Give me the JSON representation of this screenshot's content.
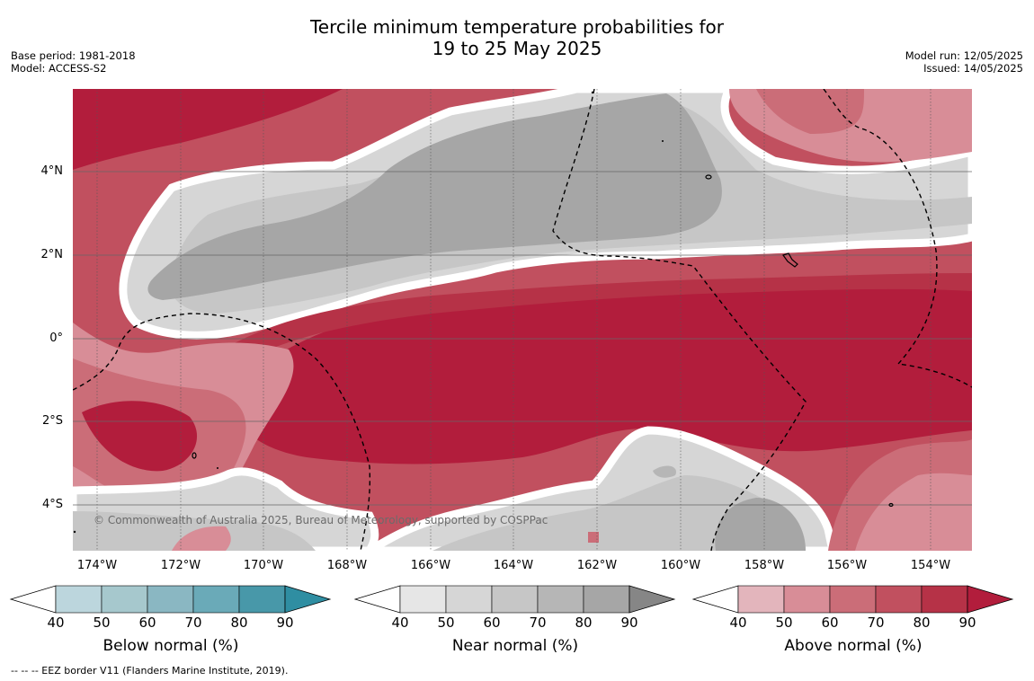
{
  "header": {
    "title_line1": "Tercile minimum temperature probabilities for",
    "title_line2": "19 to 25 May 2025",
    "base_period": "Base period: 1981-2018",
    "model": "Model: ACCESS-S2",
    "model_run": "Model run: 12/05/2025",
    "issued": "Issued: 14/05/2025"
  },
  "map": {
    "lat_labels": [
      "4°N",
      "2°N",
      "0°",
      "2°S",
      "4°S"
    ],
    "lon_labels": [
      "174°W",
      "172°W",
      "170°W",
      "168°W",
      "166°W",
      "164°W",
      "162°W",
      "160°W",
      "158°W",
      "156°W",
      "154°W"
    ],
    "credit": "© Commonwealth of Australia 2025, Bureau of Meteorology, supported by COSPPac",
    "colors": {
      "above": [
        "#e3b5bc",
        "#d88d97",
        "#cb6d78",
        "#c1505f",
        "#b63247",
        "#b21d3c"
      ],
      "near": [
        "#e6e6e6",
        "#d6d6d6",
        "#c6c6c6",
        "#b6b6b6",
        "#a6a6a6",
        "#868686"
      ],
      "below": [
        "#bcd6dd",
        "#a6c8cd",
        "#8ab7c2",
        "#6aaab8",
        "#4898a9",
        "#2f8ea2"
      ]
    }
  },
  "legend": {
    "bars": [
      {
        "label": "Below normal (%)",
        "ticks": [
          "40",
          "50",
          "60",
          "70",
          "80",
          "90"
        ]
      },
      {
        "label": "Near normal (%)",
        "ticks": [
          "40",
          "50",
          "60",
          "70",
          "80",
          "90"
        ]
      },
      {
        "label": "Above normal (%)",
        "ticks": [
          "40",
          "50",
          "60",
          "70",
          "80",
          "90"
        ]
      }
    ],
    "footer": "--  --  -- EEZ border V11 (Flanders Marine Institute, 2019)."
  }
}
